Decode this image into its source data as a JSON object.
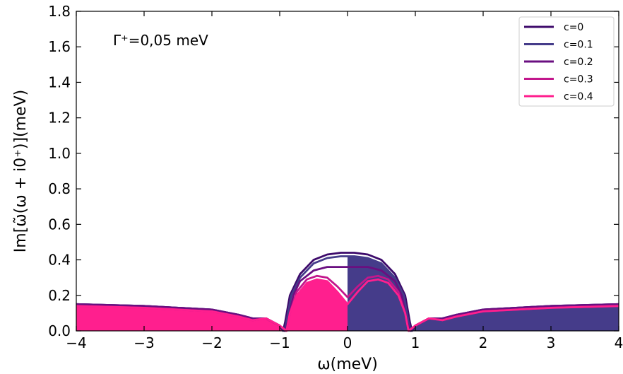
{
  "chart_data": {
    "type": "line",
    "title": "",
    "xlabel": "ω(meV)",
    "ylabel": "Im[ω̃(ω + i0⁺)](meV)",
    "xlim": [
      -4,
      4
    ],
    "ylim": [
      0,
      1.8
    ],
    "xticks": [
      "−4",
      "−3",
      "−2",
      "−1",
      "0",
      "1",
      "2",
      "3",
      "4"
    ],
    "yticks": [
      "0.0",
      "0.2",
      "0.4",
      "0.6",
      "0.8",
      "1.0",
      "1.2",
      "1.4",
      "1.6",
      "1.8"
    ],
    "annotation": "Γ⁺=0,05 meV",
    "legend_position": "top-right",
    "fill_colors": {
      "positive_side": "#453c8a",
      "negative_side": "#ff1f8e"
    },
    "series": [
      {
        "name": "c=0",
        "color": "#3d0a6b",
        "points": [
          [
            -4,
            0.15
          ],
          [
            -3,
            0.14
          ],
          [
            -2,
            0.12
          ],
          [
            -1.6,
            0.09
          ],
          [
            -1.4,
            0.07
          ],
          [
            -1.2,
            0.07
          ],
          [
            -1,
            0.03
          ],
          [
            -0.95,
            0
          ],
          [
            -0.92,
            0.05
          ],
          [
            -0.85,
            0.2
          ],
          [
            -0.7,
            0.32
          ],
          [
            -0.5,
            0.4
          ],
          [
            -0.3,
            0.43
          ],
          [
            -0.1,
            0.44
          ],
          [
            0,
            0.44
          ],
          [
            0.1,
            0.44
          ],
          [
            0.3,
            0.43
          ],
          [
            0.5,
            0.4
          ],
          [
            0.7,
            0.32
          ],
          [
            0.85,
            0.2
          ],
          [
            0.92,
            0.05
          ],
          [
            0.95,
            0
          ],
          [
            1,
            0.03
          ],
          [
            1.2,
            0.07
          ],
          [
            1.4,
            0.07
          ],
          [
            1.6,
            0.09
          ],
          [
            2,
            0.12
          ],
          [
            3,
            0.14
          ],
          [
            4,
            0.15
          ]
        ]
      },
      {
        "name": "c=0.1",
        "color": "#453c8a",
        "points": [
          [
            -4,
            0.15
          ],
          [
            -3,
            0.14
          ],
          [
            -2,
            0.12
          ],
          [
            -1.6,
            0.09
          ],
          [
            -1.4,
            0.07
          ],
          [
            -1.2,
            0.07
          ],
          [
            -1,
            0.03
          ],
          [
            -0.93,
            0
          ],
          [
            -0.9,
            0.05
          ],
          [
            -0.83,
            0.2
          ],
          [
            -0.7,
            0.3
          ],
          [
            -0.5,
            0.38
          ],
          [
            -0.3,
            0.41
          ],
          [
            -0.1,
            0.42
          ],
          [
            0,
            0.42
          ],
          [
            0.1,
            0.42
          ],
          [
            0.3,
            0.41
          ],
          [
            0.5,
            0.38
          ],
          [
            0.7,
            0.3
          ],
          [
            0.83,
            0.2
          ],
          [
            0.9,
            0.05
          ],
          [
            0.93,
            0
          ],
          [
            1,
            0.03
          ],
          [
            1.2,
            0.07
          ],
          [
            1.4,
            0.07
          ],
          [
            1.6,
            0.09
          ],
          [
            2,
            0.12
          ],
          [
            3,
            0.14
          ],
          [
            4,
            0.15
          ]
        ]
      },
      {
        "name": "c=0.2",
        "color": "#6a0f80",
        "points": [
          [
            -4,
            0.15
          ],
          [
            -3,
            0.14
          ],
          [
            -2,
            0.12
          ],
          [
            -1.6,
            0.09
          ],
          [
            -1.4,
            0.07
          ],
          [
            -1.2,
            0.07
          ],
          [
            -1,
            0.03
          ],
          [
            -0.92,
            0
          ],
          [
            -0.88,
            0.05
          ],
          [
            -0.8,
            0.2
          ],
          [
            -0.7,
            0.28
          ],
          [
            -0.5,
            0.34
          ],
          [
            -0.3,
            0.36
          ],
          [
            0,
            0.36
          ],
          [
            0.3,
            0.36
          ],
          [
            0.5,
            0.34
          ],
          [
            0.7,
            0.28
          ],
          [
            0.8,
            0.2
          ],
          [
            0.88,
            0.05
          ],
          [
            0.92,
            0
          ],
          [
            1,
            0.03
          ],
          [
            1.2,
            0.07
          ],
          [
            1.4,
            0.07
          ],
          [
            1.6,
            0.09
          ],
          [
            2,
            0.12
          ],
          [
            3,
            0.14
          ],
          [
            4,
            0.15
          ]
        ]
      },
      {
        "name": "c=0.3",
        "color": "#c2178c",
        "points": [
          [
            -4,
            0.14
          ],
          [
            -3,
            0.13
          ],
          [
            -2,
            0.11
          ],
          [
            -1.6,
            0.08
          ],
          [
            -1.4,
            0.06
          ],
          [
            -1.2,
            0.07
          ],
          [
            -1,
            0.03
          ],
          [
            -0.9,
            0
          ],
          [
            -0.85,
            0.1
          ],
          [
            -0.75,
            0.22
          ],
          [
            -0.6,
            0.29
          ],
          [
            -0.45,
            0.31
          ],
          [
            -0.3,
            0.3
          ],
          [
            -0.15,
            0.25
          ],
          [
            0,
            0.19
          ],
          [
            0.15,
            0.25
          ],
          [
            0.3,
            0.3
          ],
          [
            0.45,
            0.31
          ],
          [
            0.6,
            0.29
          ],
          [
            0.75,
            0.22
          ],
          [
            0.85,
            0.1
          ],
          [
            0.9,
            0
          ],
          [
            1,
            0.03
          ],
          [
            1.2,
            0.07
          ],
          [
            1.4,
            0.06
          ],
          [
            1.6,
            0.08
          ],
          [
            2,
            0.11
          ],
          [
            3,
            0.13
          ],
          [
            4,
            0.14
          ]
        ]
      },
      {
        "name": "c=0.4",
        "color": "#ff1f8e",
        "points": [
          [
            -4,
            0.14
          ],
          [
            -3,
            0.13
          ],
          [
            -2,
            0.11
          ],
          [
            -1.6,
            0.08
          ],
          [
            -1.4,
            0.06
          ],
          [
            -1.2,
            0.07
          ],
          [
            -1,
            0.03
          ],
          [
            -0.9,
            0
          ],
          [
            -0.85,
            0.1
          ],
          [
            -0.75,
            0.2
          ],
          [
            -0.6,
            0.27
          ],
          [
            -0.45,
            0.29
          ],
          [
            -0.3,
            0.28
          ],
          [
            -0.15,
            0.22
          ],
          [
            0,
            0.15
          ],
          [
            0.15,
            0.22
          ],
          [
            0.3,
            0.28
          ],
          [
            0.45,
            0.29
          ],
          [
            0.6,
            0.27
          ],
          [
            0.75,
            0.2
          ],
          [
            0.85,
            0.1
          ],
          [
            0.9,
            0
          ],
          [
            1,
            0.03
          ],
          [
            1.2,
            0.07
          ],
          [
            1.4,
            0.06
          ],
          [
            1.6,
            0.08
          ],
          [
            2,
            0.11
          ],
          [
            3,
            0.13
          ],
          [
            4,
            0.14
          ]
        ]
      }
    ]
  }
}
